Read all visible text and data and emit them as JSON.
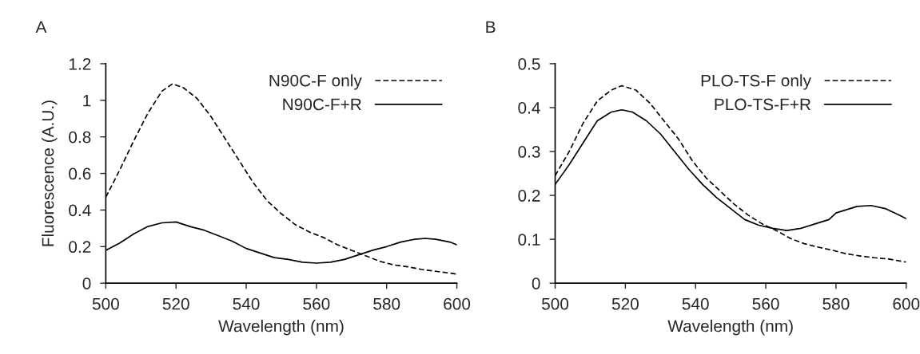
{
  "chart_data": [
    {
      "type": "line",
      "title": "A",
      "xlabel": "Wavelength (nm)",
      "ylabel": "Fluorescence (A.U.)",
      "xlim": [
        500,
        600
      ],
      "xticks": [
        500,
        520,
        540,
        560,
        580,
        600
      ],
      "ylim": [
        0,
        1.2
      ],
      "yticks": [
        0,
        0.2,
        0.4,
        0.6,
        0.8,
        1,
        1.2
      ],
      "legend": "top right",
      "grid": false,
      "marker": "none",
      "x": [
        500,
        504,
        508,
        512,
        516,
        519,
        522,
        526,
        530,
        534,
        538,
        542,
        546,
        550,
        554,
        558,
        562,
        566,
        570,
        574,
        578,
        582,
        586,
        590,
        594,
        600
      ],
      "series": [
        {
          "name": "N90C-F only",
          "color": "#000000",
          "line_style": "dashed",
          "values": [
            0.47,
            0.62,
            0.78,
            0.93,
            1.05,
            1.09,
            1.07,
            1.01,
            0.91,
            0.79,
            0.67,
            0.55,
            0.45,
            0.38,
            0.32,
            0.28,
            0.25,
            0.21,
            0.18,
            0.15,
            0.12,
            0.1,
            0.09,
            0.075,
            0.065,
            0.05
          ]
        },
        {
          "name": "N90C-F+R",
          "color": "#000000",
          "line_style": "solid",
          "x": [
            500,
            504,
            508,
            512,
            516,
            520,
            524,
            528,
            532,
            536,
            540,
            544,
            548,
            552,
            556,
            560,
            564,
            568,
            572,
            576,
            580,
            584,
            588,
            591,
            594,
            598,
            600
          ],
          "values": [
            0.18,
            0.22,
            0.27,
            0.31,
            0.33,
            0.335,
            0.31,
            0.29,
            0.26,
            0.23,
            0.19,
            0.165,
            0.14,
            0.13,
            0.115,
            0.11,
            0.115,
            0.13,
            0.155,
            0.18,
            0.2,
            0.225,
            0.24,
            0.245,
            0.24,
            0.225,
            0.21
          ]
        }
      ]
    },
    {
      "type": "line",
      "title": "B",
      "xlabel": "Wavelength (nm)",
      "xlim": [
        500,
        600
      ],
      "xticks": [
        500,
        520,
        540,
        560,
        580,
        600
      ],
      "ylim": [
        0,
        0.5
      ],
      "yticks": [
        0,
        0.1,
        0.2,
        0.3,
        0.4,
        0.5
      ],
      "legend": "top right",
      "grid": false,
      "marker": "none",
      "x": [
        500,
        504,
        508,
        512,
        516,
        519,
        523,
        527,
        531,
        535,
        539,
        543,
        547,
        551,
        555,
        559,
        563,
        567,
        571,
        575,
        579,
        583,
        587,
        591,
        595,
        600
      ],
      "series": [
        {
          "name": "PLO-TS-F only",
          "color": "#000000",
          "line_style": "dashed",
          "values": [
            0.245,
            0.3,
            0.365,
            0.415,
            0.44,
            0.45,
            0.44,
            0.41,
            0.37,
            0.33,
            0.28,
            0.24,
            0.21,
            0.18,
            0.155,
            0.135,
            0.12,
            0.102,
            0.09,
            0.082,
            0.075,
            0.067,
            0.062,
            0.058,
            0.055,
            0.048
          ]
        },
        {
          "name": "PLO-TS-F+R",
          "color": "#000000",
          "line_style": "solid",
          "x": [
            500,
            504,
            508,
            512,
            516,
            519,
            522,
            526,
            530,
            534,
            538,
            542,
            546,
            550,
            554,
            558,
            562,
            566,
            570,
            574,
            578,
            580,
            584,
            586,
            590,
            594,
            598,
            600
          ],
          "values": [
            0.225,
            0.27,
            0.32,
            0.37,
            0.39,
            0.395,
            0.39,
            0.37,
            0.34,
            0.3,
            0.26,
            0.225,
            0.195,
            0.17,
            0.145,
            0.132,
            0.125,
            0.12,
            0.125,
            0.135,
            0.145,
            0.16,
            0.17,
            0.175,
            0.177,
            0.17,
            0.155,
            0.147
          ]
        }
      ]
    }
  ]
}
